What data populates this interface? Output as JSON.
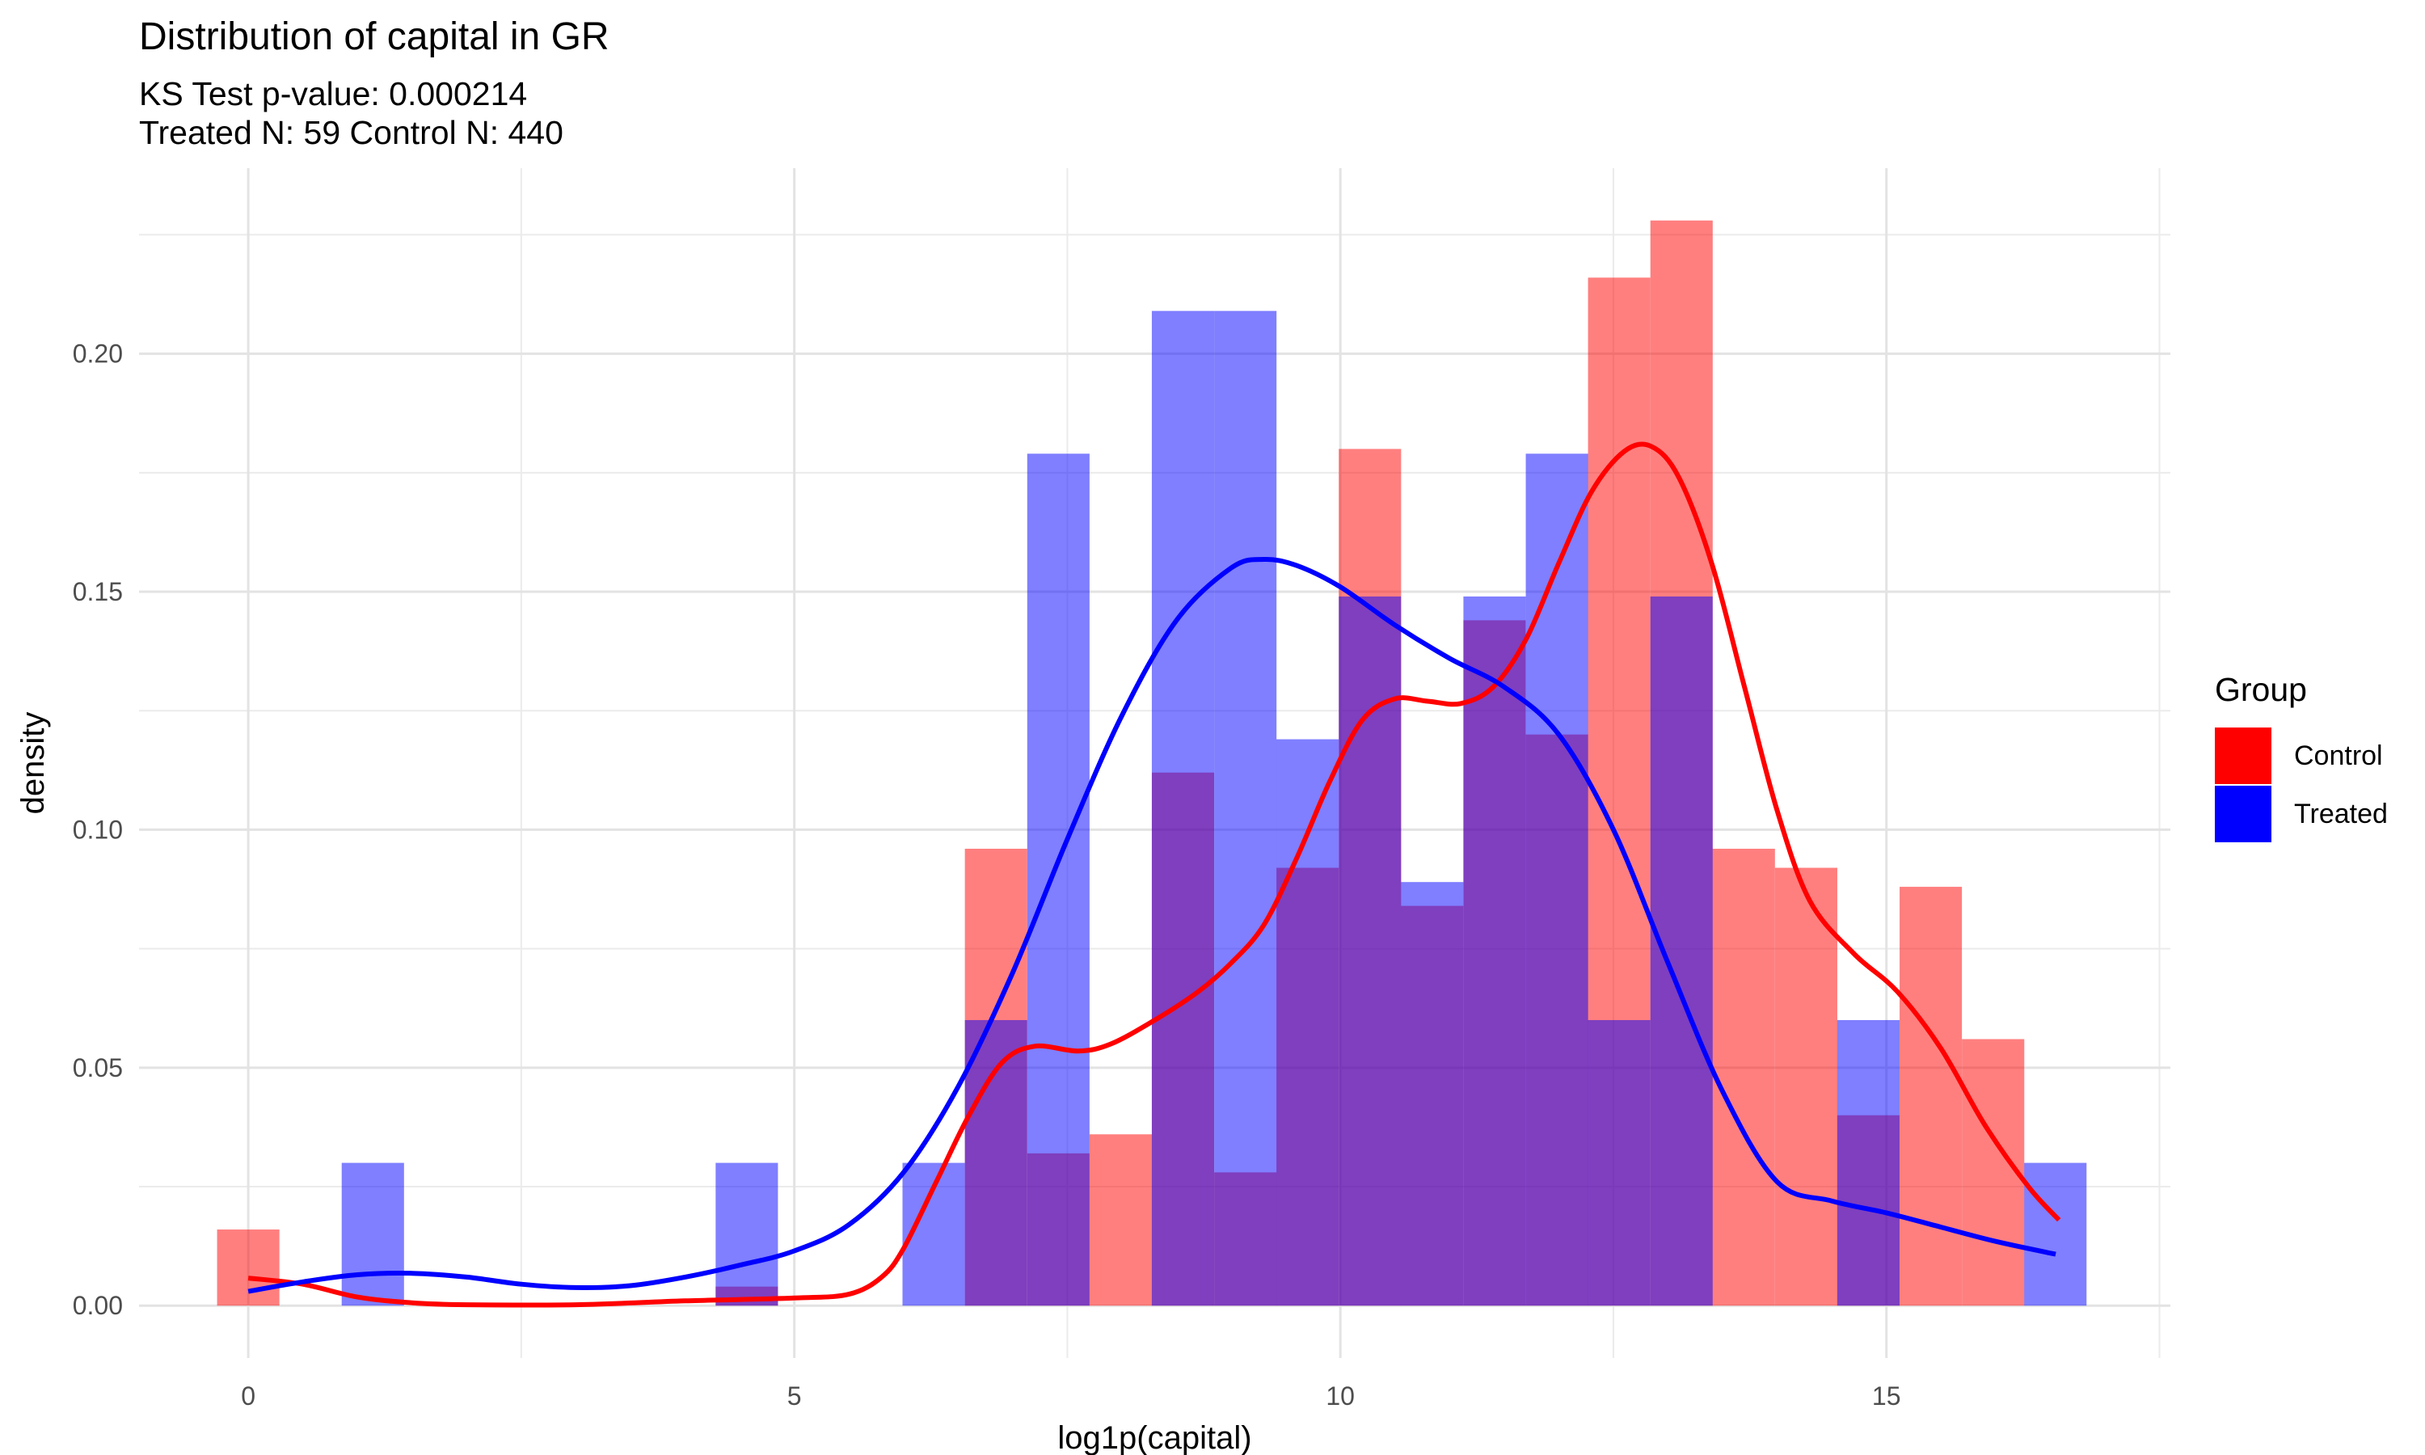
{
  "chart_data": {
    "type": "bar",
    "title": "Distribution of capital in GR",
    "subtitle_lines": [
      "KS Test p-value: 0.000214",
      "Treated N: 59 Control N: 440"
    ],
    "xlabel": "log1p(capital)",
    "ylabel": "density",
    "xlim": [
      -1.0,
      17.6
    ],
    "ylim": [
      -0.011,
      0.239
    ],
    "x_ticks": [
      0,
      5,
      10,
      15
    ],
    "x_tick_labels": [
      "0",
      "5",
      "10",
      "15"
    ],
    "y_ticks": [
      0.0,
      0.05,
      0.1,
      0.15,
      0.2
    ],
    "y_tick_labels": [
      "0.00",
      "0.05",
      "0.10",
      "0.15",
      "0.20"
    ],
    "grid": true,
    "legend_position": "right",
    "legend_title": "Group",
    "bin_width": 0.5706,
    "series": [
      {
        "name": "Control",
        "color": "#ff0000",
        "bins": [
          {
            "x": 0.0,
            "y": 0.016
          },
          {
            "x": 4.565,
            "y": 0.004
          },
          {
            "x": 6.847,
            "y": 0.096
          },
          {
            "x": 7.418,
            "y": 0.032
          },
          {
            "x": 7.989,
            "y": 0.036
          },
          {
            "x": 8.559,
            "y": 0.112
          },
          {
            "x": 9.13,
            "y": 0.028
          },
          {
            "x": 9.7,
            "y": 0.092
          },
          {
            "x": 10.271,
            "y": 0.18
          },
          {
            "x": 10.841,
            "y": 0.084
          },
          {
            "x": 11.412,
            "y": 0.144
          },
          {
            "x": 11.983,
            "y": 0.12
          },
          {
            "x": 12.553,
            "y": 0.216
          },
          {
            "x": 13.124,
            "y": 0.228
          },
          {
            "x": 13.694,
            "y": 0.096
          },
          {
            "x": 14.265,
            "y": 0.092
          },
          {
            "x": 14.835,
            "y": 0.04
          },
          {
            "x": 15.406,
            "y": 0.088
          },
          {
            "x": 15.977,
            "y": 0.056
          }
        ],
        "density": [
          [
            0.0,
            0.0058
          ],
          [
            0.5,
            0.0045
          ],
          [
            1.0,
            0.0018
          ],
          [
            1.5,
            0.0006
          ],
          [
            2.0,
            0.0002
          ],
          [
            3.0,
            0.0002
          ],
          [
            4.0,
            0.001
          ],
          [
            5.0,
            0.0016
          ],
          [
            5.5,
            0.0024
          ],
          [
            5.8,
            0.006
          ],
          [
            6.0,
            0.012
          ],
          [
            6.3,
            0.026
          ],
          [
            6.6,
            0.04
          ],
          [
            6.9,
            0.051
          ],
          [
            7.2,
            0.0545
          ],
          [
            7.6,
            0.0535
          ],
          [
            7.9,
            0.055
          ],
          [
            8.3,
            0.06
          ],
          [
            8.7,
            0.066
          ],
          [
            9.0,
            0.072
          ],
          [
            9.3,
            0.08
          ],
          [
            9.6,
            0.094
          ],
          [
            9.9,
            0.11
          ],
          [
            10.2,
            0.123
          ],
          [
            10.5,
            0.1275
          ],
          [
            10.8,
            0.127
          ],
          [
            11.1,
            0.1265
          ],
          [
            11.4,
            0.13
          ],
          [
            11.7,
            0.14
          ],
          [
            12.0,
            0.156
          ],
          [
            12.3,
            0.171
          ],
          [
            12.6,
            0.1795
          ],
          [
            12.85,
            0.1805
          ],
          [
            13.1,
            0.174
          ],
          [
            13.4,
            0.156
          ],
          [
            13.7,
            0.13
          ],
          [
            14.0,
            0.104
          ],
          [
            14.3,
            0.085
          ],
          [
            14.7,
            0.074
          ],
          [
            15.1,
            0.066
          ],
          [
            15.5,
            0.054
          ],
          [
            15.9,
            0.038
          ],
          [
            16.3,
            0.025
          ],
          [
            16.58,
            0.018
          ]
        ]
      },
      {
        "name": "Treated",
        "color": "#0000ff",
        "bins": [
          {
            "x": 1.141,
            "y": 0.03
          },
          {
            "x": 4.565,
            "y": 0.03
          },
          {
            "x": 6.276,
            "y": 0.03
          },
          {
            "x": 6.847,
            "y": 0.06
          },
          {
            "x": 7.418,
            "y": 0.179
          },
          {
            "x": 8.559,
            "y": 0.209
          },
          {
            "x": 9.13,
            "y": 0.209
          },
          {
            "x": 9.7,
            "y": 0.119
          },
          {
            "x": 10.271,
            "y": 0.149
          },
          {
            "x": 10.841,
            "y": 0.089
          },
          {
            "x": 11.412,
            "y": 0.149
          },
          {
            "x": 11.983,
            "y": 0.179
          },
          {
            "x": 12.553,
            "y": 0.06
          },
          {
            "x": 13.124,
            "y": 0.149
          },
          {
            "x": 14.835,
            "y": 0.06
          },
          {
            "x": 16.547,
            "y": 0.03
          }
        ],
        "density": [
          [
            0.0,
            0.003
          ],
          [
            0.5,
            0.005
          ],
          [
            1.0,
            0.0065
          ],
          [
            1.5,
            0.0068
          ],
          [
            2.0,
            0.006
          ],
          [
            2.5,
            0.0045
          ],
          [
            3.0,
            0.0038
          ],
          [
            3.5,
            0.0042
          ],
          [
            4.0,
            0.006
          ],
          [
            4.5,
            0.0085
          ],
          [
            5.0,
            0.0115
          ],
          [
            5.5,
            0.017
          ],
          [
            6.0,
            0.028
          ],
          [
            6.5,
            0.046
          ],
          [
            7.0,
            0.07
          ],
          [
            7.5,
            0.098
          ],
          [
            8.0,
            0.124
          ],
          [
            8.5,
            0.144
          ],
          [
            9.0,
            0.155
          ],
          [
            9.3,
            0.1568
          ],
          [
            9.6,
            0.1555
          ],
          [
            10.0,
            0.151
          ],
          [
            10.5,
            0.143
          ],
          [
            11.0,
            0.136
          ],
          [
            11.5,
            0.13
          ],
          [
            12.0,
            0.12
          ],
          [
            12.5,
            0.1
          ],
          [
            13.0,
            0.072
          ],
          [
            13.5,
            0.045
          ],
          [
            14.0,
            0.026
          ],
          [
            14.5,
            0.022
          ],
          [
            15.0,
            0.0195
          ],
          [
            15.5,
            0.0165
          ],
          [
            16.0,
            0.0135
          ],
          [
            16.55,
            0.0108
          ]
        ]
      }
    ]
  }
}
